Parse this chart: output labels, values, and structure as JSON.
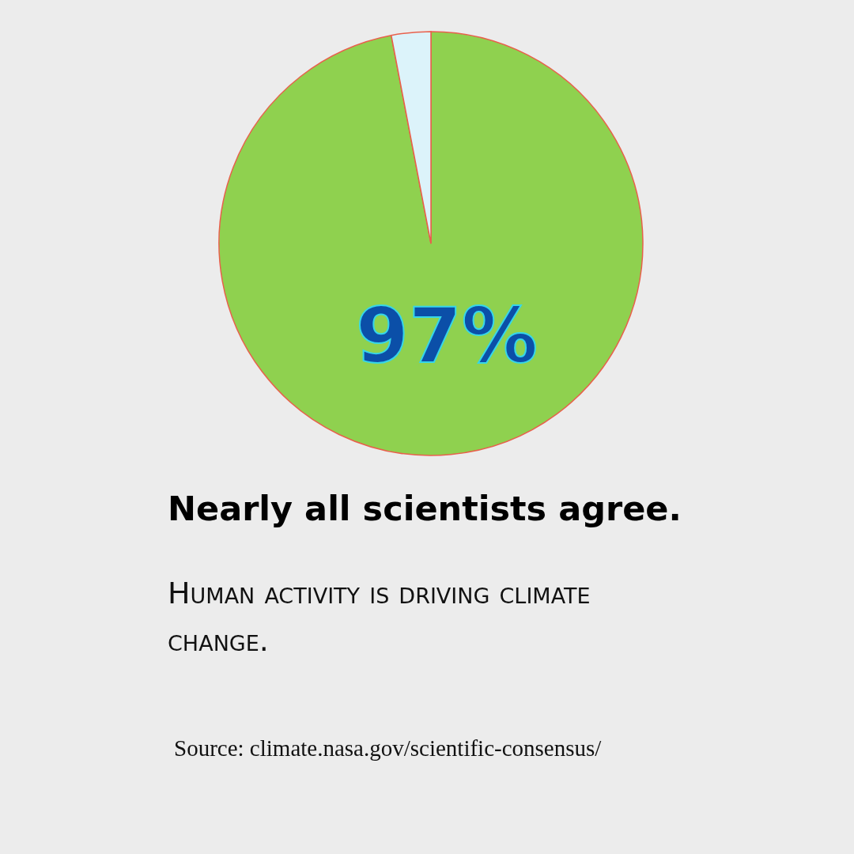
{
  "chart_data": {
    "type": "pie",
    "title": "Nearly all scientists agree.",
    "subtitle": "Human activity is driving climate change.",
    "categories": [
      null,
      null
    ],
    "values": [
      97,
      3
    ],
    "colors": [
      "#8fd14f",
      "#dcf3fa"
    ],
    "value_labels": [
      "97%",
      null
    ],
    "annotations": [
      "Source: climate.nasa.gov/scientific-consensus/"
    ]
  }
}
